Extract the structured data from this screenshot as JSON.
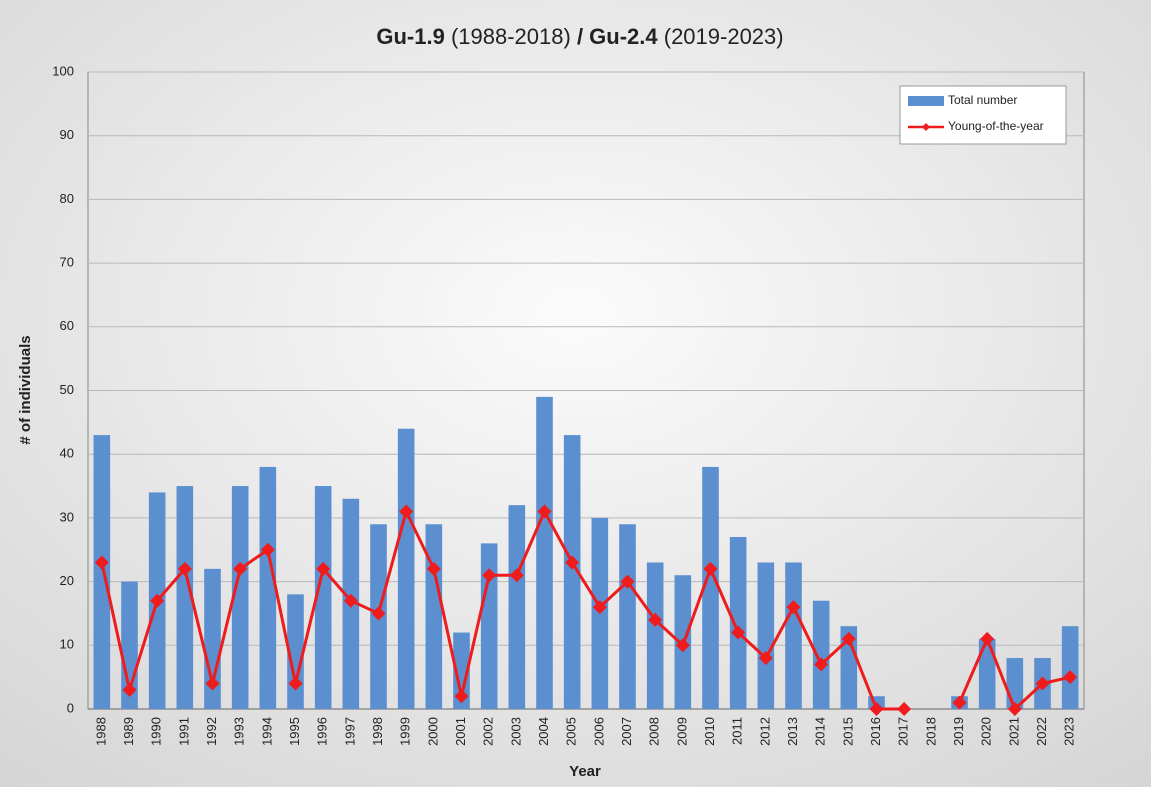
{
  "chart_data": {
    "type": "bar_line",
    "title": [
      {
        "text": "Gu-1.9",
        "bold": true
      },
      {
        "text": " (1988-2018) ",
        "bold": false
      },
      {
        "text": "/ Gu-2.4",
        "bold": true
      },
      {
        "text": " (2019-2023)",
        "bold": false
      }
    ],
    "x_label": "Year",
    "y_label": "# of individuals",
    "categories": [
      "1988",
      "1989",
      "1990",
      "1991",
      "1992",
      "1993",
      "1994",
      "1995",
      "1996",
      "1997",
      "1998",
      "1999",
      "2000",
      "2001",
      "2002",
      "2003",
      "2004",
      "2005",
      "2006",
      "2007",
      "2008",
      "2009",
      "2010",
      "2011",
      "2012",
      "2013",
      "2014",
      "2015",
      "2016",
      "2017",
      "2018",
      "2019",
      "2020",
      "2021",
      "2022",
      "2023"
    ],
    "series": [
      {
        "name": "Total number",
        "type": "bar",
        "color": "#5b8fd0",
        "values": [
          43,
          20,
          34,
          35,
          22,
          35,
          38,
          18,
          35,
          33,
          29,
          44,
          29,
          12,
          26,
          32,
          49,
          43,
          30,
          29,
          23,
          21,
          38,
          27,
          23,
          23,
          17,
          13,
          2,
          0,
          0,
          2,
          11,
          8,
          8,
          13
        ]
      },
      {
        "name": "Young-of-the-year",
        "type": "line",
        "color": "#ee1c1c",
        "values": [
          23,
          3,
          17,
          22,
          4,
          22,
          25,
          4,
          22,
          17,
          15,
          31,
          22,
          2,
          21,
          21,
          31,
          23,
          16,
          20,
          14,
          10,
          22,
          12,
          8,
          16,
          7,
          11,
          0,
          0,
          null,
          1,
          11,
          0,
          4,
          5
        ]
      }
    ],
    "ylim": [
      0,
      100
    ],
    "yticks": [
      0,
      10,
      20,
      30,
      40,
      50,
      60,
      70,
      80,
      90,
      100
    ],
    "grid": true,
    "legend": "top-right"
  }
}
